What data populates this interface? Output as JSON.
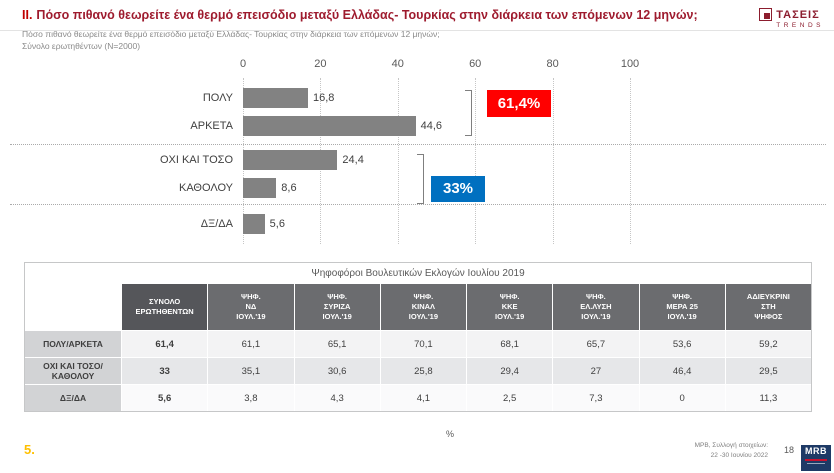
{
  "header": {
    "title_prefix": "ΙΙ.",
    "title": "Πόσο πιθανό θεωρείτε ένα θερμό επεισόδιο μεταξύ Ελλάδας- Τουρκίας στην διάρκεια των επόμενων 12 μηνών;",
    "subtitle": "Πόσο πιθανό θεωρείτε ένα θερμό επεισόδιο μεταξύ Ελλάδας- Τουρκίας στην διάρκεια των επόμενων 12 μηνών;",
    "sample_note": "Σύνολο ερωτηθέντων (N=2000)",
    "logo_name": "ΤΑΣΕΙΣ",
    "logo_sub": "TRENDS"
  },
  "chart_data": {
    "type": "bar",
    "orientation": "horizontal",
    "categories": [
      "ΠΟΛΥ",
      "ΑΡΚΕΤΑ",
      "ΟΧΙ ΚΑΙ ΤΟΣΟ",
      "ΚΑΘΟΛΟΥ",
      "ΔΞ/ΔΑ"
    ],
    "values": [
      16.8,
      44.6,
      24.4,
      8.6,
      5.6
    ],
    "value_labels": [
      "16,8",
      "44,6",
      "24,4",
      "8,6",
      "5,6"
    ],
    "xlim": [
      0,
      100
    ],
    "x_ticks": [
      0,
      20,
      40,
      60,
      80,
      100
    ],
    "grid": "vertical-dotted",
    "bar_color": "#828282",
    "groups": [
      {
        "label": "61,4%",
        "color": "#ff0000",
        "rows": [
          0,
          1
        ]
      },
      {
        "label": "33%",
        "color": "#0070c0",
        "rows": [
          2,
          3
        ]
      }
    ]
  },
  "table": {
    "title": "Ψηφοφόροι Βουλευτικών Εκλογών Ιουλίου 2019",
    "col_headers": [
      "ΣΥΝΟΛΟ\nΕΡΩΤΗΘΕΝΤΩΝ",
      "ΨΗΦ.\nΝΔ\nΙΟΥΛ.'19",
      "ΨΗΦ.\nΣΥΡΙΖΑ\nΙΟΥΛ.'19",
      "ΨΗΦ.\nΚΙΝΑΛ\nΙΟΥΛ.'19",
      "ΨΗΦ.\nΚΚΕ\nΙΟΥΛ.'19",
      "ΨΗΦ.\nΕΛ.ΛΥΣΗ\nΙΟΥΛ.'19",
      "ΨΗΦ.\nΜΕΡΑ 25\nΙΟΥΛ.'19",
      "ΑΔΙΕΥΚΡΙΝΙ\nΣΤΗ\nΨΗΦΟΣ"
    ],
    "rows": [
      {
        "label": "ΠΟΛΥ/ΑΡΚΕΤΑ",
        "values": [
          "61,4",
          "61,1",
          "65,1",
          "70,1",
          "68,1",
          "65,7",
          "53,6",
          "59,2"
        ]
      },
      {
        "label": "ΟΧΙ ΚΑΙ ΤΟΣΟ/ΚΑΘΟΛΟΥ",
        "values": [
          "33",
          "35,1",
          "30,6",
          "25,8",
          "29,4",
          "27",
          "46,4",
          "29,5"
        ]
      },
      {
        "label": "ΔΞ/ΔΑ",
        "values": [
          "5,6",
          "3,8",
          "4,3",
          "4,1",
          "2,5",
          "7,3",
          "0",
          "11,3"
        ]
      }
    ],
    "unit": "%"
  },
  "footer": {
    "slide_marker": "5.",
    "source_line1": "ΜΡΒ, Συλλογή στοιχείων:",
    "source_line2": "22 -30 Ιουνίου 2022",
    "page_number": "18",
    "logo": "MRB"
  }
}
